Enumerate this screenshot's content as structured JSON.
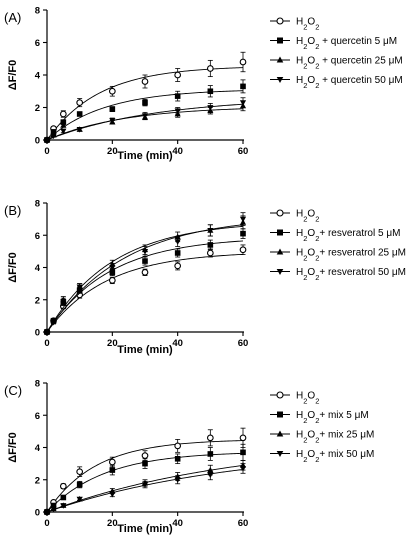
{
  "chart_data": [
    {
      "type": "scatter",
      "panel_label": "(A)",
      "xlabel": "Time (min)",
      "ylabel": "ΔF/F0",
      "xlim": [
        0,
        60
      ],
      "ylim": [
        0,
        8
      ],
      "x_ticks": [
        0,
        20,
        40,
        60
      ],
      "y_ticks": [
        0,
        2,
        4,
        6,
        8
      ],
      "x": [
        0,
        2,
        5,
        10,
        20,
        30,
        40,
        50,
        60
      ],
      "fitted_curves": true,
      "series": [
        {
          "name": "H2O2",
          "marker": "circle-open",
          "values": [
            0,
            0.7,
            1.6,
            2.3,
            3.0,
            3.6,
            4.0,
            4.4,
            4.8
          ],
          "errors": [
            0,
            0.1,
            0.2,
            0.25,
            0.3,
            0.4,
            0.4,
            0.5,
            0.6
          ]
        },
        {
          "name": "H2O2 + quercetin 5 μM",
          "marker": "square",
          "values": [
            0,
            0.5,
            1.1,
            1.6,
            1.9,
            2.3,
            2.7,
            3.0,
            3.3
          ],
          "errors": [
            0,
            0.1,
            0.1,
            0.1,
            0.15,
            0.2,
            0.3,
            0.35,
            0.4
          ]
        },
        {
          "name": "H2O2 + quercetin 25 μM",
          "marker": "triangle-up",
          "values": [
            0,
            0.3,
            0.9,
            0.65,
            1.1,
            1.4,
            1.6,
            1.8,
            2.1
          ],
          "errors": [
            0,
            0.05,
            0.1,
            0.1,
            0.1,
            0.15,
            0.2,
            0.2,
            0.3
          ]
        },
        {
          "name": "H2O2 + quercetin 50 μM",
          "marker": "triangle-down",
          "values": [
            0,
            0.25,
            0.55,
            0.65,
            1.2,
            1.5,
            1.8,
            2.0,
            2.3
          ],
          "errors": [
            0,
            0.05,
            0.1,
            0.1,
            0.15,
            0.2,
            0.2,
            0.25,
            0.3
          ]
        }
      ],
      "legend": [
        "H2O2",
        "H2O2 + quercetin 5 μM",
        "H2O2 + quercetin 25 μM",
        "H2O2 + quercetin 50 μM"
      ]
    },
    {
      "type": "scatter",
      "panel_label": "(B)",
      "xlabel": "Time (min)",
      "ylabel": "ΔF/F0",
      "xlim": [
        0,
        60
      ],
      "ylim": [
        0,
        8
      ],
      "x_ticks": [
        0,
        20,
        40,
        60
      ],
      "y_ticks": [
        0,
        2,
        4,
        6,
        8
      ],
      "x": [
        0,
        2,
        5,
        10,
        20,
        30,
        40,
        50,
        60
      ],
      "fitted_curves": true,
      "series": [
        {
          "name": "H2O2",
          "marker": "circle-open",
          "values": [
            0,
            0.7,
            1.6,
            2.3,
            3.2,
            3.7,
            4.1,
            4.9,
            5.1
          ],
          "errors": [
            0,
            0.1,
            0.15,
            0.2,
            0.2,
            0.2,
            0.25,
            0.25,
            0.3
          ]
        },
        {
          "name": "H2O2+ resveratrol 5 μM",
          "marker": "square",
          "values": [
            0,
            0.7,
            1.8,
            2.6,
            3.7,
            4.4,
            4.9,
            5.4,
            6.1
          ],
          "errors": [
            0,
            0.1,
            0.15,
            0.2,
            0.2,
            0.25,
            0.25,
            0.3,
            0.3
          ]
        },
        {
          "name": "H2O2+ resveratrol 25 μM",
          "marker": "triangle-up",
          "values": [
            0,
            0.7,
            2.0,
            2.8,
            4.2,
            5.1,
            5.9,
            6.3,
            6.8
          ],
          "errors": [
            0,
            0.1,
            0.2,
            0.2,
            0.25,
            0.3,
            0.3,
            0.35,
            0.4
          ]
        },
        {
          "name": "H2O2+ resveratrol 50 μM",
          "marker": "triangle-down",
          "values": [
            0,
            0.6,
            1.9,
            2.8,
            4.0,
            5.0,
            5.6,
            6.3,
            7.0
          ],
          "errors": [
            0,
            0.1,
            0.2,
            0.2,
            0.25,
            0.3,
            0.3,
            0.35,
            0.4
          ]
        }
      ],
      "legend": [
        "H2O2",
        "H2O2+ resveratrol 5 μM",
        "H2O2+ resveratrol 25 μM",
        "H2O2+ resveratrol 50 μM"
      ]
    },
    {
      "type": "scatter",
      "panel_label": "(C)",
      "xlabel": "Time (min)",
      "ylabel": "ΔF/F0",
      "xlim": [
        0,
        60
      ],
      "ylim": [
        0,
        8
      ],
      "x_ticks": [
        0,
        20,
        40,
        60
      ],
      "y_ticks": [
        0,
        2,
        4,
        6,
        8
      ],
      "x": [
        0,
        2,
        5,
        10,
        20,
        30,
        40,
        50,
        60
      ],
      "fitted_curves": true,
      "series": [
        {
          "name": "H2O2",
          "marker": "circle-open",
          "values": [
            0,
            0.6,
            1.6,
            2.5,
            3.1,
            3.5,
            4.1,
            4.6,
            4.6
          ],
          "errors": [
            0,
            0.1,
            0.15,
            0.3,
            0.3,
            0.3,
            0.4,
            0.5,
            0.6
          ]
        },
        {
          "name": "H2O2+ mix 5 μM",
          "marker": "square",
          "values": [
            0,
            0.4,
            0.9,
            1.7,
            2.6,
            3.0,
            3.3,
            3.6,
            3.7
          ],
          "errors": [
            0,
            0.1,
            0.1,
            0.2,
            0.3,
            0.3,
            0.3,
            0.4,
            0.5
          ]
        },
        {
          "name": "H2O2+ mix 25 μM",
          "marker": "triangle-up",
          "values": [
            0,
            0.2,
            0.4,
            0.8,
            1.3,
            1.8,
            2.2,
            2.6,
            2.9
          ],
          "errors": [
            0,
            0.05,
            0.05,
            0.1,
            0.15,
            0.2,
            0.25,
            0.3,
            0.3
          ]
        },
        {
          "name": "H2O2+ mix 50 μM",
          "marker": "triangle-down",
          "values": [
            0,
            0.2,
            0.4,
            0.8,
            1.1,
            1.7,
            2.0,
            2.3,
            2.7
          ],
          "errors": [
            0,
            0.05,
            0.05,
            0.1,
            0.15,
            0.2,
            0.25,
            0.3,
            0.3
          ]
        }
      ],
      "legend": [
        "H2O2",
        "H2O2+ mix 5 μM",
        "H2O2+ mix 25 μM",
        "H2O2+ mix 50 μM"
      ]
    }
  ]
}
